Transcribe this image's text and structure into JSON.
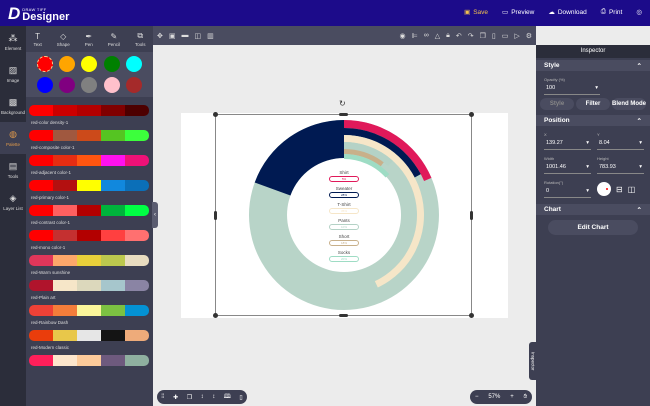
{
  "app": {
    "brand_small": "DRAW TIFF",
    "brand": "Designer"
  },
  "top_actions": [
    {
      "label": "Save",
      "icon": "save-icon"
    },
    {
      "label": "Preview",
      "icon": "monitor-icon"
    },
    {
      "label": "Download",
      "icon": "cloud-download-icon"
    },
    {
      "label": "Print",
      "icon": "printer-icon"
    }
  ],
  "rail": [
    {
      "label": "Element",
      "icon": "element-icon"
    },
    {
      "label": "Image",
      "icon": "image-icon"
    },
    {
      "label": "Background",
      "icon": "background-icon"
    },
    {
      "label": "Palette",
      "icon": "palette-icon",
      "active": true
    },
    {
      "label": "Tools",
      "icon": "toolbox-icon"
    },
    {
      "label": "Layer List",
      "icon": "layers-icon"
    }
  ],
  "tools": [
    {
      "label": "Text"
    },
    {
      "label": "Shape"
    },
    {
      "label": "Pen"
    },
    {
      "label": "Pencil"
    },
    {
      "label": "Tools"
    }
  ],
  "swatches": [
    "#ff0000",
    "#ffa500",
    "#ffff00",
    "#008000",
    "#00ffff",
    "#0000ff",
    "#800080",
    "#808080",
    "#ffc0cb",
    "#a52a2a"
  ],
  "palettes": [
    {
      "name": "red-color density-1",
      "colors": [
        "#ff0000",
        "#cc0000",
        "#b30000",
        "#800000",
        "#4d0000"
      ]
    },
    {
      "name": "red-composite color-1",
      "colors": [
        "#ff0000",
        "#a0583f",
        "#cc4a1a",
        "#55c422",
        "#3cff3c"
      ]
    },
    {
      "name": "red-adjacent color-1",
      "colors": [
        "#ff0000",
        "#e62d12",
        "#ff5511",
        "#ff11ee",
        "#ee1177"
      ]
    },
    {
      "name": "red-primary color-1",
      "colors": [
        "#ff0000",
        "#b31010",
        "#ffff00",
        "#1188dd",
        "#0b6fb8"
      ]
    },
    {
      "name": "red-contrast color-1",
      "colors": [
        "#ff0000",
        "#ff6060",
        "#b30000",
        "#00b33c",
        "#00ff44"
      ]
    },
    {
      "name": "red-mono color-1",
      "colors": [
        "#ff0000",
        "#c43030",
        "#b30000",
        "#ff4040",
        "#ff7070"
      ]
    },
    {
      "name": "red-Warm sunshine",
      "colors": [
        "#e0365a",
        "#fda76a",
        "#e8cf3a",
        "#bcc84e",
        "#e8dcc0"
      ]
    },
    {
      "name": "red-Plain art",
      "colors": [
        "#b0142c",
        "#f6e6c8",
        "#dcd8bc",
        "#a6c6cc",
        "#8a84a4"
      ]
    },
    {
      "name": "red-Rainbow Dash",
      "colors": [
        "#ee4136",
        "#f47d3a",
        "#fbf59a",
        "#7cc142",
        "#0492d4"
      ]
    },
    {
      "name": "red-Modern classic",
      "colors": [
        "#ea3d0c",
        "#e8c74a",
        "#e6e6e6",
        "#141414",
        "#eeab7a"
      ]
    },
    {
      "name": "",
      "colors": [
        "#ff1f5a",
        "#fde6cc",
        "#fdcb9a",
        "#6e5a7e",
        "#8fb0a0"
      ]
    }
  ],
  "zoom": {
    "value": "57%"
  },
  "inspector": {
    "title": "Inspector",
    "style": {
      "title": "Style",
      "opacity_label": "Opacity (%)",
      "opacity": "100",
      "buttons": [
        "Style",
        "Filter",
        "Blend Mode"
      ]
    },
    "position": {
      "title": "Position",
      "x_label": "X",
      "x": "139.27",
      "y_label": "Y",
      "y": "8.04",
      "w_label": "Width",
      "w": "1001.46",
      "h_label": "Height",
      "h": "783.93",
      "rot_label": "Rotation(°)",
      "rot": "0"
    },
    "chart": {
      "title": "Chart",
      "edit": "Edit Chart"
    },
    "tab": "Inspector"
  },
  "chart_data": {
    "type": "radial-bar",
    "categories": [
      "Shirt",
      "Sweater",
      "T-Shirt",
      "Pants",
      "Short",
      "Socks"
    ],
    "values": [
      5,
      28,
      35,
      10,
      18,
      20
    ],
    "value_labels": [
      "5%",
      "28%",
      "35%",
      "10%",
      "18%",
      "20%"
    ],
    "colors": [
      "#e0195a",
      "#001a52",
      "#f6e6c8",
      "#b4d2c6",
      "#c8b08a",
      "#9edcc4"
    ],
    "background_ring": "#b8d4c8"
  }
}
